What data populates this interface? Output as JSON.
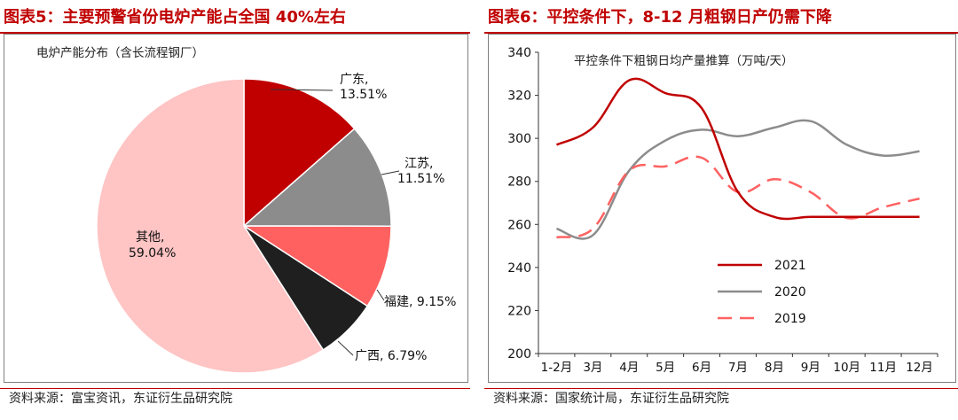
{
  "left": {
    "figure_title": "图表5：主要预警省份电炉产能占全国 40%左右",
    "source": "资料来源：富宝资讯，东证衍生品研究院",
    "chart_data": {
      "type": "pie",
      "title": "电炉产能分布（含长流程钢厂）",
      "slices": [
        {
          "name": "广东",
          "value": 13.51,
          "label": "13.51%",
          "color": "#c00000"
        },
        {
          "name": "江苏",
          "value": 11.51,
          "label": "11.51%",
          "color": "#8c8c8c"
        },
        {
          "name": "福建",
          "value": 9.15,
          "label": "9.15%",
          "color": "#ff6161"
        },
        {
          "name": "广西",
          "value": 6.79,
          "label": "6.79%",
          "color": "#1f1f1f"
        },
        {
          "name": "其他",
          "value": 59.04,
          "label": "59.04%",
          "color": "#ffc4c4"
        }
      ]
    }
  },
  "right": {
    "figure_title": "图表6：平控条件下，8-12 月粗钢日产仍需下降",
    "source": "资料来源：国家统计局，东证衍生品研究院",
    "chart_data": {
      "type": "line",
      "title": "平控条件下粗钢日均产量推算（万吨/天）",
      "categories": [
        "1-2月",
        "3月",
        "4月",
        "5月",
        "6月",
        "7月",
        "8月",
        "9月",
        "10月",
        "11月",
        "12月"
      ],
      "ylim": [
        200,
        340
      ],
      "yticks": [
        200,
        220,
        240,
        260,
        280,
        300,
        320,
        340
      ],
      "series": [
        {
          "name": "2021",
          "color": "#c00000",
          "dash": "none",
          "values": [
            297,
            305,
            327,
            321,
            314,
            275,
            263.5,
            263.5,
            263.5,
            263.5,
            263.5
          ]
        },
        {
          "name": "2020",
          "color": "#8c8c8c",
          "dash": "none",
          "values": [
            258,
            255,
            285,
            299,
            304,
            301,
            305,
            308,
            297,
            292,
            294
          ]
        },
        {
          "name": "2019",
          "color": "#ff6161",
          "dash": "dash",
          "values": [
            254,
            258,
            285,
            287,
            291,
            275,
            281,
            275,
            263,
            268,
            272
          ]
        }
      ]
    }
  }
}
